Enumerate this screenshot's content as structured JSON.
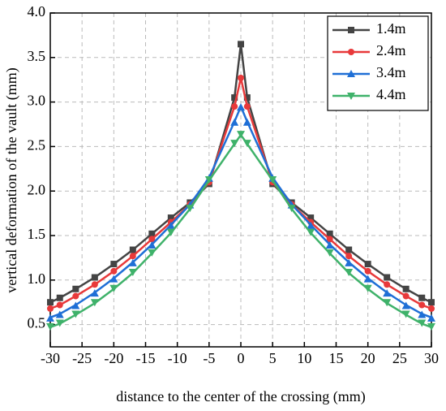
{
  "chart_data": {
    "type": "line",
    "x_label": "distance to the center of the crossing (mm)",
    "y_label": "vertical deformation of the vault (mm)",
    "x": [
      -30,
      -28.5,
      -26,
      -23,
      -20,
      -17,
      -14,
      -11,
      -8,
      -5,
      -1,
      0,
      1,
      5,
      8,
      11,
      14,
      17,
      20,
      23,
      26,
      28.5,
      30
    ],
    "series": [
      {
        "name": "1.4m",
        "color": "#444444",
        "marker": "square",
        "values": [
          0.75,
          0.8,
          0.9,
          1.03,
          1.18,
          1.34,
          1.52,
          1.7,
          1.87,
          2.08,
          3.05,
          3.65,
          3.05,
          2.08,
          1.87,
          1.7,
          1.52,
          1.34,
          1.18,
          1.03,
          0.9,
          0.8,
          0.75
        ]
      },
      {
        "name": "2.4m",
        "color": "#e8393a",
        "marker": "circle",
        "values": [
          0.68,
          0.72,
          0.82,
          0.95,
          1.1,
          1.27,
          1.46,
          1.65,
          1.85,
          2.1,
          2.95,
          3.27,
          2.95,
          2.1,
          1.85,
          1.65,
          1.46,
          1.27,
          1.1,
          0.95,
          0.82,
          0.72,
          0.68
        ]
      },
      {
        "name": "3.4m",
        "color": "#1f6fd6",
        "marker": "triangle-up",
        "values": [
          0.58,
          0.62,
          0.72,
          0.86,
          1.02,
          1.2,
          1.4,
          1.62,
          1.85,
          2.15,
          2.78,
          2.95,
          2.78,
          2.15,
          1.85,
          1.62,
          1.4,
          1.2,
          1.02,
          0.86,
          0.72,
          0.62,
          0.58
        ]
      },
      {
        "name": "4.4m",
        "color": "#3fb26a",
        "marker": "triangle-down",
        "values": [
          0.47,
          0.51,
          0.61,
          0.74,
          0.9,
          1.08,
          1.3,
          1.53,
          1.8,
          2.12,
          2.53,
          2.63,
          2.53,
          2.12,
          1.8,
          1.53,
          1.3,
          1.08,
          0.9,
          0.74,
          0.61,
          0.51,
          0.47
        ]
      }
    ],
    "xlim": [
      -30,
      30
    ],
    "xticks": [
      -30,
      -25,
      -20,
      -15,
      -10,
      -5,
      0,
      5,
      10,
      15,
      20,
      25,
      30
    ],
    "ylim": [
      0.25,
      4.0
    ],
    "yticks": [
      0.5,
      {
        "value": 1,
        "label": "1.0"
      },
      1.5,
      {
        "value": 2,
        "label": "2.0"
      },
      2.5,
      {
        "value": 3,
        "label": "3.0"
      },
      3.5,
      {
        "value": 4,
        "label": "4.0"
      }
    ],
    "grid": true,
    "legend": "upper right"
  }
}
